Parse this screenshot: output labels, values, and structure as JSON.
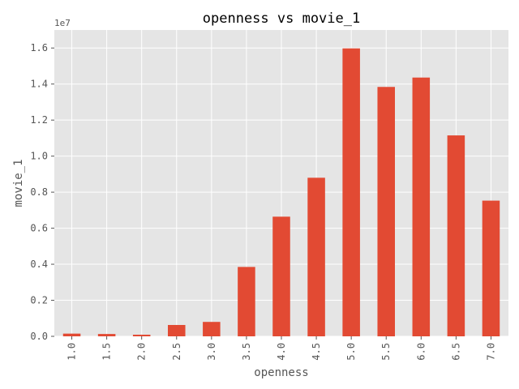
{
  "chart_data": {
    "type": "bar",
    "title": "openness vs movie_1",
    "xlabel": "openness",
    "ylabel": "movie_1",
    "y_offset_label": "1e7",
    "categories": [
      "1.0",
      "1.5",
      "2.0",
      "2.5",
      "3.0",
      "3.5",
      "4.0",
      "4.5",
      "5.0",
      "5.5",
      "6.0",
      "6.5",
      "7.0"
    ],
    "values": [
      150000,
      130000,
      90000,
      630000,
      800000,
      3850000,
      6640000,
      8800000,
      15980000,
      13840000,
      14360000,
      11150000,
      7530000
    ],
    "ylim": [
      0,
      17000000
    ],
    "yticks": [
      0,
      2000000,
      4000000,
      6000000,
      8000000,
      10000000,
      12000000,
      14000000,
      16000000
    ],
    "ytick_labels": [
      "0.0",
      "0.2",
      "0.4",
      "0.6",
      "0.8",
      "1.0",
      "1.2",
      "1.4",
      "1.6"
    ],
    "grid": true,
    "colors": {
      "bar": "#E24A33",
      "plot_background": "#E5E5E5",
      "grid": "#FFFFFF"
    }
  }
}
